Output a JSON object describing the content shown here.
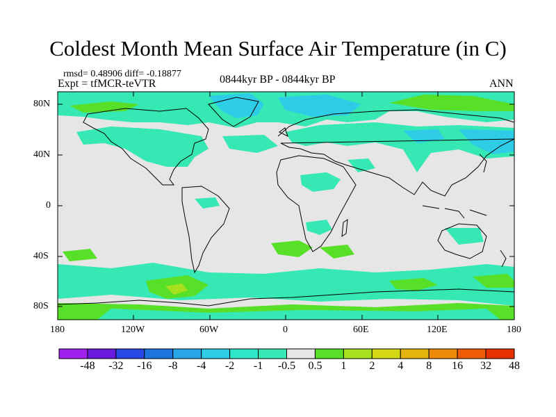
{
  "title": "Coldest Month Mean Surface Air Temperature (in C)",
  "stats": "rmsd= 0.48906  diff= -0.18877",
  "experiment": "Expt = tfMCR-teVTR",
  "period": "0844kyr BP - 0844kyr BP",
  "season": "ANN",
  "y_axis": {
    "ticks": [
      "80N",
      "40N",
      "0",
      "40S",
      "80S"
    ]
  },
  "x_axis": {
    "ticks": [
      "180",
      "120W",
      "60W",
      "0",
      "60E",
      "120E",
      "180"
    ]
  },
  "colorbar": {
    "labels": [
      "-48",
      "-32",
      "-16",
      "-8",
      "-4",
      "-2",
      "-1",
      "-0.5",
      "0.5",
      "1",
      "2",
      "4",
      "8",
      "16",
      "32",
      "48"
    ],
    "colors": [
      "#a020f0",
      "#6a1adc",
      "#2848e6",
      "#1c74dc",
      "#2aa6e8",
      "#2ecce6",
      "#2fe6c8",
      "#36e8b4",
      "#e6e6e6",
      "#58e028",
      "#a6e01e",
      "#d6d816",
      "#e4b40e",
      "#f08a0a",
      "#f05c06",
      "#e63000"
    ]
  },
  "colors": {
    "neutral": "#e6e6e6",
    "cool": "#36e8b4",
    "cooler": "#2ecce6",
    "coldest": "#2aa6e8",
    "warm": "#58e028",
    "warmer": "#a6e01e",
    "coast": "#000000"
  }
}
